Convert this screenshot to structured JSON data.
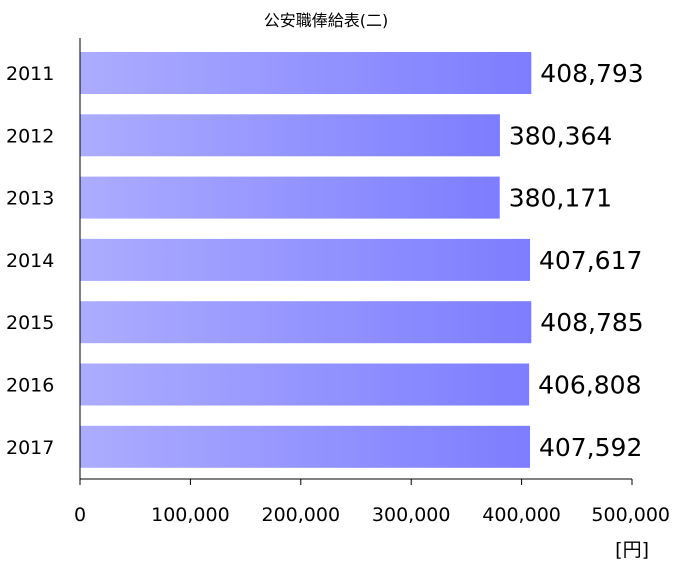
{
  "chart_data": {
    "type": "bar",
    "orientation": "horizontal",
    "title": "公安職俸給表(二)",
    "categories": [
      "2011",
      "2012",
      "2013",
      "2014",
      "2015",
      "2016",
      "2017"
    ],
    "values": [
      408793,
      380364,
      380171,
      407617,
      408785,
      406808,
      407592
    ],
    "value_labels": [
      "408,793",
      "380,364",
      "380,171",
      "407,617",
      "408,785",
      "406,808",
      "407,592"
    ],
    "x_ticks": [
      0,
      100000,
      200000,
      300000,
      400000,
      500000
    ],
    "x_tick_labels": [
      "0",
      "100,000",
      "200,000",
      "300,000",
      "400,000",
      "500,000"
    ],
    "xlim": [
      0,
      500000
    ],
    "xlabel": "[円]",
    "ylabel": "",
    "grid": false,
    "legend": "none",
    "colors": {
      "bar_start": "#acacff",
      "bar_end": "#7d7dff",
      "axis": "#000000"
    }
  }
}
